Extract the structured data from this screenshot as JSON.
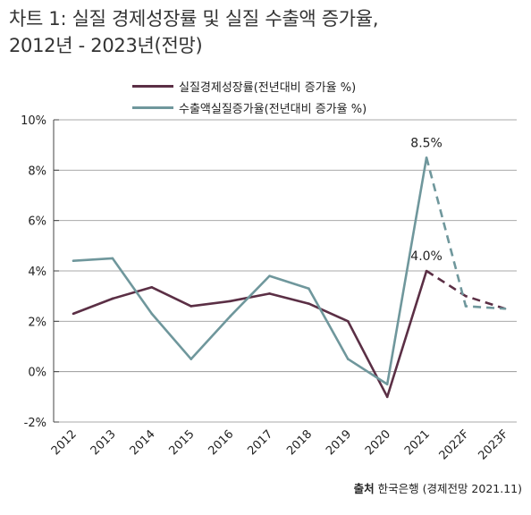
{
  "title_line1": "차트 1: 실질 경제성장률 및 실질 수출액 증가율,",
  "title_line2": "2012년 - 2023년(전망)",
  "source_label": "출처",
  "source_text": "한국은행 (경제전망 2021.11)",
  "colors": {
    "gdp": "#5b2f45",
    "export": "#6f979c",
    "axis": "#333333"
  },
  "chart_data": {
    "type": "line",
    "categories": [
      "2012",
      "2013",
      "2014",
      "2015",
      "2016",
      "2017",
      "2018",
      "2019",
      "2020",
      "2021",
      "2022F",
      "2023F"
    ],
    "series": [
      {
        "name": "실질경제성장률(전년대비 증가율 %)",
        "values": [
          2.3,
          2.9,
          3.35,
          2.6,
          2.8,
          3.1,
          2.7,
          2.0,
          -1.0,
          4.0,
          3.0,
          2.5
        ],
        "forecast_from_index": 9,
        "annotation": {
          "index": 9,
          "text": "4.0%"
        }
      },
      {
        "name": "수출액실질증가율(전년대비 증가율 %)",
        "values": [
          4.4,
          4.5,
          2.3,
          0.5,
          2.2,
          3.8,
          3.3,
          0.5,
          -0.5,
          8.5,
          2.6,
          2.5
        ],
        "forecast_from_index": 9,
        "annotation": {
          "index": 9,
          "text": "8.5%"
        }
      }
    ],
    "ylim": [
      -2,
      10
    ],
    "yticks": [
      -2,
      0,
      2,
      4,
      6,
      8,
      10
    ],
    "ytick_labels": [
      "-2%",
      "0%",
      "2%",
      "4%",
      "6%",
      "8%",
      "10%"
    ],
    "legend_position": "top-center",
    "grid": false
  }
}
